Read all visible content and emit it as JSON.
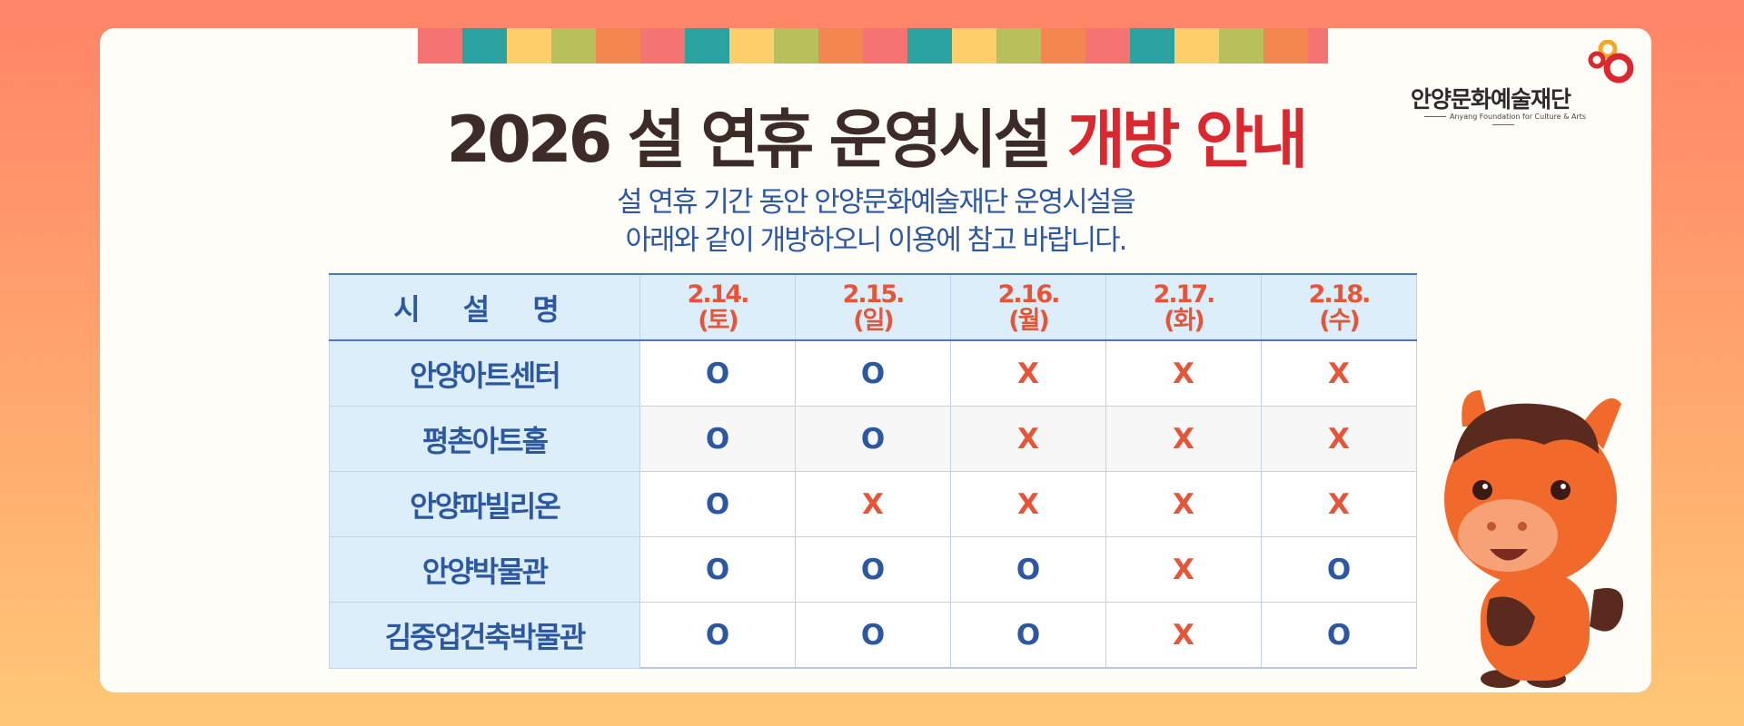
{
  "title": {
    "main": "2026 설 연휴 운영시설",
    "highlight": "개방 안내"
  },
  "subtitle": [
    "설 연휴 기간 동안 안양문화예술재단 운영시설을",
    "아래와 같이 개방하오니 이용에 참고 바랍니다."
  ],
  "logo": {
    "name": "안양문화예술재단",
    "english": "Anyang Foundation for Culture & Arts"
  },
  "table": {
    "header": {
      "facility": "시 설 명",
      "dates": [
        {
          "date": "2.14.",
          "day": "(토)"
        },
        {
          "date": "2.15.",
          "day": "(일)"
        },
        {
          "date": "2.16.",
          "day": "(월)"
        },
        {
          "date": "2.17.",
          "day": "(화)"
        },
        {
          "date": "2.18.",
          "day": "(수)"
        }
      ]
    },
    "rows": [
      {
        "name": "안양아트센터",
        "cells": [
          "O",
          "O",
          "X",
          "X",
          "X"
        ]
      },
      {
        "name": "평촌아트홀",
        "cells": [
          "O",
          "O",
          "X",
          "X",
          "X"
        ]
      },
      {
        "name": "안양파빌리온",
        "cells": [
          "O",
          "X",
          "X",
          "X",
          "X"
        ]
      },
      {
        "name": "안양박물관",
        "cells": [
          "O",
          "O",
          "O",
          "X",
          "O"
        ]
      },
      {
        "name": "김중업건축박물관",
        "cells": [
          "O",
          "O",
          "O",
          "X",
          "O"
        ]
      }
    ]
  }
}
